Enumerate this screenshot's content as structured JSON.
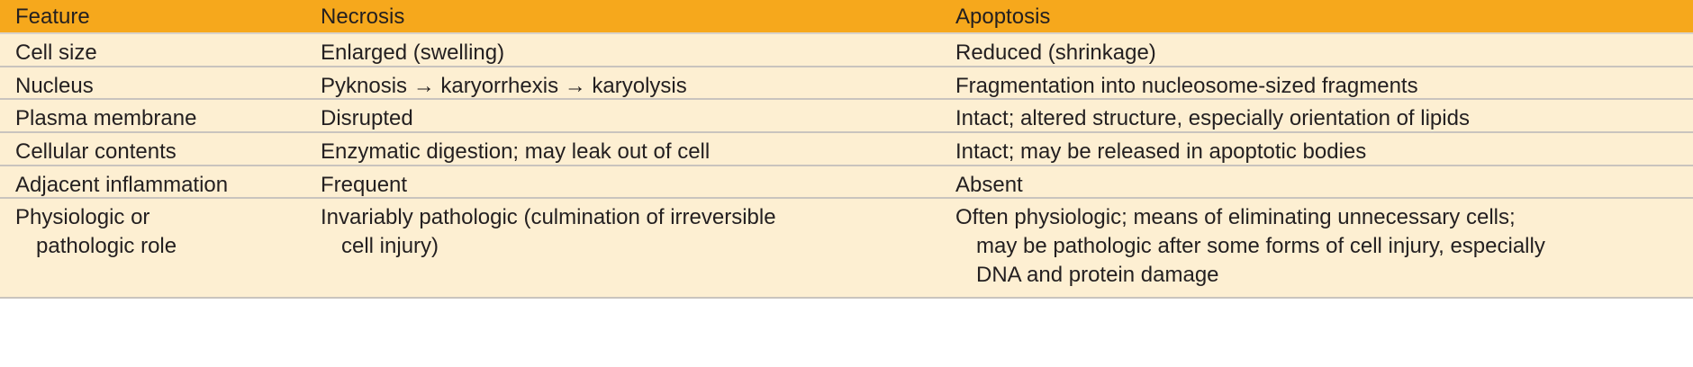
{
  "header": {
    "feature": "Feature",
    "necrosis": "Necrosis",
    "apoptosis": "Apoptosis"
  },
  "rows": [
    {
      "feature": [
        "Cell size"
      ],
      "necrosis": [
        "Enlarged (swelling)"
      ],
      "apoptosis": [
        "Reduced (shrinkage)"
      ]
    },
    {
      "feature": [
        "Nucleus"
      ],
      "necrosis": [
        "Pyknosis → karyorrhexis → karyolysis"
      ],
      "apoptosis": [
        "Fragmentation into nucleosome-sized fragments"
      ]
    },
    {
      "feature": [
        "Plasma membrane"
      ],
      "necrosis": [
        "Disrupted"
      ],
      "apoptosis": [
        "Intact; altered structure, especially orientation of lipids"
      ]
    },
    {
      "feature": [
        "Cellular contents"
      ],
      "necrosis": [
        "Enzymatic digestion; may leak out of cell"
      ],
      "apoptosis": [
        "Intact; may be released in apoptotic bodies"
      ]
    },
    {
      "feature": [
        "Adjacent inflammation"
      ],
      "necrosis": [
        "Frequent"
      ],
      "apoptosis": [
        "Absent"
      ]
    },
    {
      "feature": [
        "Physiologic or",
        "pathologic role"
      ],
      "necrosis": [
        "Invariably pathologic (culmination of irreversible",
        "cell injury)"
      ],
      "apoptosis": [
        "Often physiologic; means of eliminating unnecessary cells;",
        "may be pathologic after some forms of cell injury, especially",
        "DNA and protein damage"
      ]
    }
  ]
}
